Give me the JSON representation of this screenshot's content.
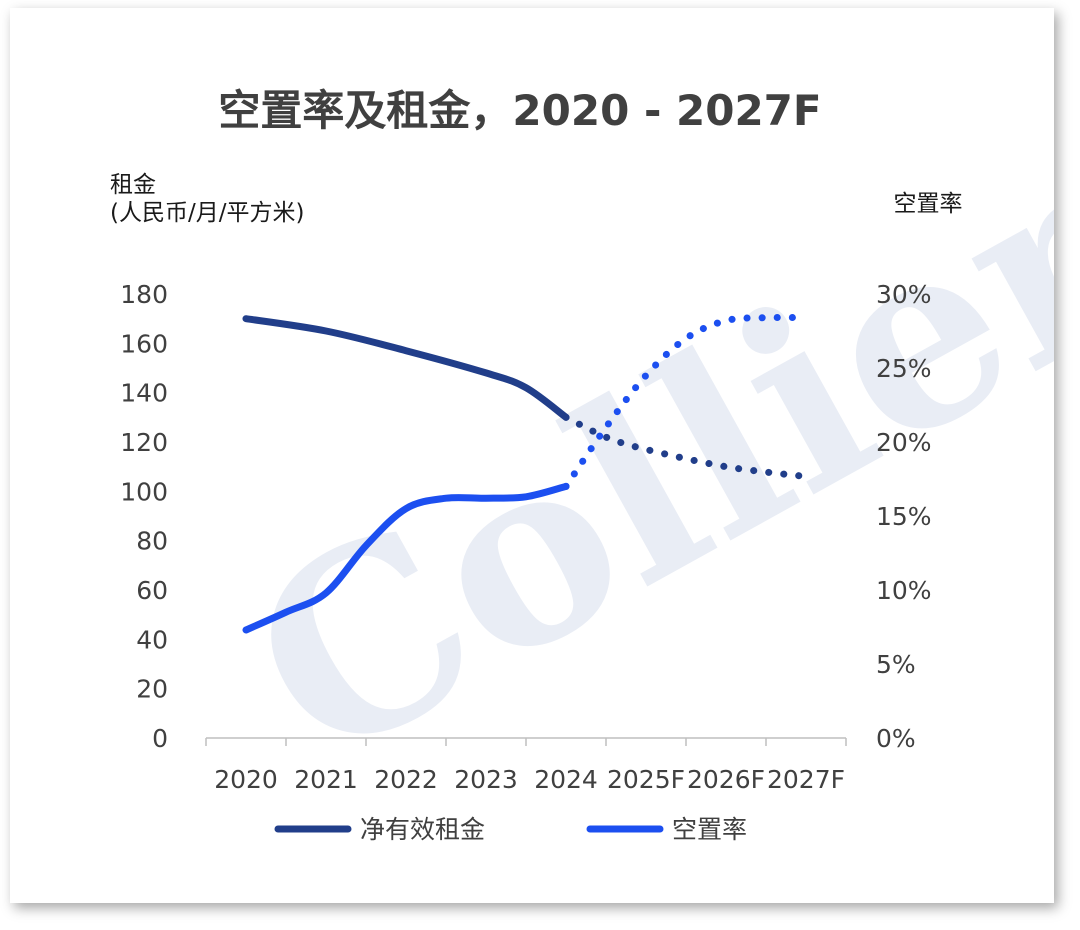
{
  "chart_data": {
    "type": "line",
    "title": "空置率及租金，2020 - 2027F",
    "watermark": "Colliers",
    "categories": [
      "2020",
      "2021",
      "2022",
      "2023",
      "2024",
      "2025F",
      "2026F",
      "2027F"
    ],
    "y_left": {
      "label_line1": "租金",
      "label_line2": "(人民币/月/平方米)",
      "range": [
        0,
        180
      ],
      "ticks": [
        "0",
        "20",
        "40",
        "60",
        "80",
        "100",
        "120",
        "140",
        "160",
        "180"
      ]
    },
    "y_right": {
      "label": "空置率",
      "range": [
        0,
        0.3
      ],
      "ticks": [
        "0%",
        "5%",
        "10%",
        "15%",
        "20%",
        "25%",
        "30%"
      ]
    },
    "series": [
      {
        "name": "净有效租金",
        "axis": "left",
        "color": "#213E8A",
        "actual": {
          "x": [
            0,
            1,
            2,
            3,
            3.5,
            4
          ],
          "y": [
            170,
            165,
            157,
            148,
            142,
            130
          ]
        },
        "forecast": {
          "x": [
            4,
            4.5,
            5,
            6,
            7
          ],
          "y": [
            130,
            122,
            117,
            110,
            106
          ]
        }
      },
      {
        "name": "空置率",
        "axis": "right",
        "color": "#1C4FF0",
        "actual": {
          "x": [
            0,
            0.5,
            1,
            1.5,
            2,
            2.5,
            3,
            3.5,
            4
          ],
          "y": [
            0.073,
            0.085,
            0.098,
            0.13,
            0.155,
            0.162,
            0.162,
            0.163,
            0.17
          ]
        },
        "forecast": {
          "x": [
            4,
            4.5,
            5,
            5.5,
            6,
            6.5,
            7
          ],
          "y": [
            0.17,
            0.21,
            0.245,
            0.27,
            0.282,
            0.284,
            0.284
          ]
        }
      }
    ],
    "legend": "bottom",
    "grid": false
  }
}
